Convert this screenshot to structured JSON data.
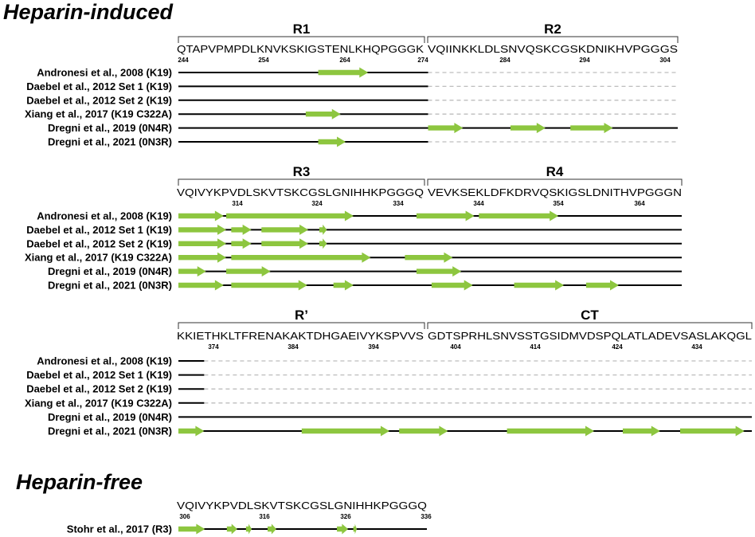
{
  "sections": [
    {
      "title": "Heparin-induced",
      "panels": [
        {
          "regions": [
            {
              "label": "R1",
              "sequence": "QTAPVPMPDLKNVKSKIGSTENLKHQPGGGK",
              "ticks": [
                "244",
                "254",
                "264",
                "274"
              ]
            },
            {
              "label": "R2",
              "sequence": "VQIINKKLDLSNVQSKCGSKDNIKHVPGGGS",
              "ticks": [
                "284",
                "294",
                "304"
              ]
            }
          ],
          "rows": [
            {
              "label": "Andronesi et al., 2008 (K19)",
              "line": [
                [
                  0,
                  0.5
                ]
              ],
              "dashed": [
                [
                  0.5,
                  1
                ]
              ],
              "arrows": [
                [
                  0.28,
                  0.38
                ]
              ]
            },
            {
              "label": "Daebel et al., 2012 Set 1 (K19)",
              "line": [
                [
                  0,
                  0.5
                ]
              ],
              "dashed": [
                [
                  0.5,
                  1
                ]
              ],
              "arrows": []
            },
            {
              "label": "Daebel et al., 2012 Set 2 (K19)",
              "line": [
                [
                  0,
                  0.5
                ]
              ],
              "dashed": [
                [
                  0.5,
                  1
                ]
              ],
              "arrows": []
            },
            {
              "label": "Xiang et al., 2017 (K19 C322A)",
              "line": [
                [
                  0,
                  0.5
                ]
              ],
              "dashed": [
                [
                  0.5,
                  1
                ]
              ],
              "arrows": [
                [
                  0.255,
                  0.325
                ]
              ]
            },
            {
              "label": "Dregni et al., 2019 (0N4R)",
              "line": [
                [
                  0,
                  1
                ]
              ],
              "dashed": [],
              "arrows": [
                [
                  0.5,
                  0.57
                ],
                [
                  0.665,
                  0.735
                ],
                [
                  0.785,
                  0.87
                ]
              ]
            },
            {
              "label": "Dregni et al., 2021 (0N3R)",
              "line": [
                [
                  0,
                  0.5
                ]
              ],
              "dashed": [
                [
                  0.5,
                  1
                ]
              ],
              "arrows": [
                [
                  0.28,
                  0.335
                ]
              ]
            }
          ]
        },
        {
          "regions": [
            {
              "label": "R3",
              "sequence": "VQIVYKPVDLSKVTSKCGSLGNIHHKPGGGQ",
              "ticks": [
                "314",
                "324",
                "334"
              ]
            },
            {
              "label": "R4",
              "sequence": "VEVKSEKLDFKDRVQSKIGSLDNITHVPGGGN",
              "ticks": [
                "344",
                "354",
                "364"
              ]
            }
          ],
          "rows": [
            {
              "label": "Andronesi et al., 2008 (K19)",
              "line": [
                [
                  0,
                  1
                ]
              ],
              "dashed": [],
              "arrows": [
                [
                  0,
                  0.09
                ],
                [
                  0.095,
                  0.348
                ],
                [
                  0.473,
                  0.588
                ],
                [
                  0.597,
                  0.755
                ]
              ]
            },
            {
              "label": "Daebel et al., 2012 Set 1 (K19)",
              "line": [
                [
                  0,
                  1
                ]
              ],
              "dashed": [],
              "arrows": [
                [
                  0,
                  0.095
                ],
                [
                  0.105,
                  0.145
                ],
                [
                  0.165,
                  0.258
                ],
                [
                  0.28,
                  0.295
                ]
              ]
            },
            {
              "label": "Daebel et al., 2012 Set 2 (K19)",
              "line": [
                [
                  0,
                  1
                ]
              ],
              "dashed": [],
              "arrows": [
                [
                  0,
                  0.095
                ],
                [
                  0.105,
                  0.145
                ],
                [
                  0.165,
                  0.258
                ],
                [
                  0.28,
                  0.295
                ]
              ]
            },
            {
              "label": "Xiang et al., 2017 (K19 C322A)",
              "line": [
                [
                  0,
                  1
                ]
              ],
              "dashed": [],
              "arrows": [
                [
                  0,
                  0.095
                ],
                [
                  0.105,
                  0.382
                ],
                [
                  0.45,
                  0.545
                ]
              ]
            },
            {
              "label": "Dregni et al., 2019 (0N4R)",
              "line": [
                [
                  0,
                  1
                ]
              ],
              "dashed": [],
              "arrows": [
                [
                  0,
                  0.055
                ],
                [
                  0.095,
                  0.183
                ],
                [
                  0.473,
                  0.562
                ]
              ]
            },
            {
              "label": "Dregni et al., 2021 (0N3R)",
              "line": [
                [
                  0,
                  1
                ]
              ],
              "dashed": [],
              "arrows": [
                [
                  0,
                  0.09
                ],
                [
                  0.105,
                  0.256
                ],
                [
                  0.308,
                  0.348
                ],
                [
                  0.503,
                  0.585
                ],
                [
                  0.667,
                  0.766
                ],
                [
                  0.81,
                  0.875
                ]
              ]
            }
          ]
        },
        {
          "regions": [
            {
              "label": "R’",
              "sequence": "KKIETHKLTFRENAKAKTDHGAEIVYKSPVVS",
              "ticks": [
                "374",
                "384",
                "394"
              ]
            },
            {
              "label": "CT",
              "sequence": "GDTSPRHLSNVSSTGSIDMVDSPQLATLADEVSASLAKQGL",
              "ticks": [
                "404",
                "414",
                "424",
                "434"
              ]
            }
          ],
          "rows": [
            {
              "label": "Andronesi et al., 2008 (K19)",
              "line": [
                [
                  0,
                  0.045
                ]
              ],
              "dashed": [
                [
                  0.045,
                  1
                ]
              ],
              "arrows": []
            },
            {
              "label": "Daebel et al., 2012 Set 1 (K19)",
              "line": [
                [
                  0,
                  0.045
                ]
              ],
              "dashed": [
                [
                  0.045,
                  1
                ]
              ],
              "arrows": []
            },
            {
              "label": "Daebel et al., 2012 Set 2 (K19)",
              "line": [
                [
                  0,
                  0.045
                ]
              ],
              "dashed": [
                [
                  0.045,
                  1
                ]
              ],
              "arrows": []
            },
            {
              "label": "Xiang et al., 2017 (K19 C322A)",
              "line": [
                [
                  0,
                  0.045
                ]
              ],
              "dashed": [
                [
                  0.045,
                  1
                ]
              ],
              "arrows": []
            },
            {
              "label": "Dregni et al., 2019 (0N4R)",
              "line": [
                [
                  0,
                  1
                ]
              ],
              "dashed": [],
              "arrows": []
            },
            {
              "label": "Dregni et al., 2021 (0N3R)",
              "line": [
                [
                  0,
                  1
                ]
              ],
              "dashed": [],
              "arrows": [
                [
                  0,
                  0.045
                ],
                [
                  0.215,
                  0.368
                ],
                [
                  0.385,
                  0.47
                ],
                [
                  0.573,
                  0.725
                ],
                [
                  0.775,
                  0.84
                ],
                [
                  0.875,
                  0.987
                ]
              ]
            }
          ]
        }
      ]
    },
    {
      "title": "Heparin-free",
      "panels": [
        {
          "regions": [
            {
              "label": "",
              "sequence": "VQIVYKPVDLSKVTSKCGSLGNIHHKPGGGQ",
              "ticks": [
                "306",
                "316",
                "326",
                "336"
              ]
            }
          ],
          "rows": [
            {
              "label": "Stohr et al., 2017 (R3)",
              "line": [
                [
                  0,
                  1
                ]
              ],
              "dashed": [],
              "arrows": [
                [
                  0.0,
                  0.107
                ],
                [
                  0.195,
                  0.237
                ],
                [
                  0.272,
                  0.295
                ],
                [
                  0.359,
                  0.394
                ],
                [
                  0.638,
                  0.683
                ],
                [
                  0.704,
                  0.718
                ]
              ]
            }
          ]
        }
      ]
    }
  ],
  "colors": {
    "arrow": "#8dc63f",
    "line": "#000000",
    "dashed": "#bdbdbd",
    "bracket": "#333333"
  }
}
